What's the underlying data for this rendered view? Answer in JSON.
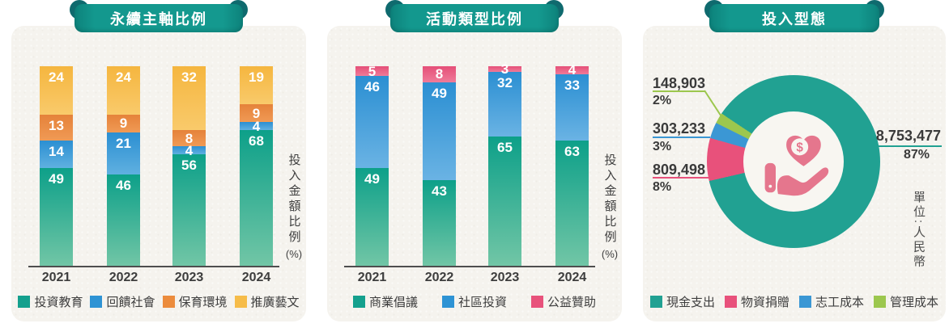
{
  "page": {
    "background": "#ffffff",
    "card_background": "#f5f3ee",
    "ribbon_color": "#13988e"
  },
  "chart_data": [
    {
      "type": "bar",
      "stacked": true,
      "title": "永續主軸比例",
      "categories": [
        "2021",
        "2022",
        "2023",
        "2024"
      ],
      "series": [
        {
          "name": "投資教育",
          "values": [
            49,
            46,
            56,
            68
          ],
          "color_top": "#0da089",
          "color_bottom": "#72c6a6",
          "legend_color": "#14a08d"
        },
        {
          "name": "回饋社會",
          "values": [
            14,
            21,
            4,
            4
          ],
          "color_top": "#2b8fd2",
          "color_bottom": "#5fb0e0",
          "legend_color": "#2e93d4"
        },
        {
          "name": "保育環境",
          "values": [
            13,
            9,
            8,
            9
          ],
          "color_top": "#e5823a",
          "color_bottom": "#f09a55",
          "legend_color": "#ec8c3d"
        },
        {
          "name": "推廣藝文",
          "values": [
            24,
            24,
            32,
            19
          ],
          "color_top": "#f5b63f",
          "color_bottom": "#f9ca6b",
          "legend_color": "#f6bc49"
        }
      ],
      "ylabel": "投入金額比例",
      "ylabel_unit": "(%)",
      "ylim": [
        0,
        100
      ],
      "legend_position": "bottom",
      "value_unit": "percent"
    },
    {
      "type": "bar",
      "stacked": true,
      "title": "活動類型比例",
      "categories": [
        "2021",
        "2022",
        "2023",
        "2024"
      ],
      "series": [
        {
          "name": "商業倡議",
          "values": [
            49,
            43,
            65,
            63
          ],
          "color_top": "#0da089",
          "color_bottom": "#72c6a6",
          "legend_color": "#14a08d"
        },
        {
          "name": "社區投資",
          "values": [
            46,
            49,
            32,
            33
          ],
          "color_top": "#2b8fd2",
          "color_bottom": "#6ab3e4",
          "legend_color": "#2e93d4"
        },
        {
          "name": "公益贊助",
          "values": [
            5,
            8,
            3,
            4
          ],
          "color_top": "#e54f78",
          "color_bottom": "#ef7b99",
          "legend_color": "#e8527b"
        }
      ],
      "ylabel": "投入金額比例",
      "ylabel_unit": "(%)",
      "ylim": [
        0,
        100
      ],
      "legend_position": "bottom",
      "value_unit": "percent"
    },
    {
      "type": "pie",
      "donut": true,
      "title": "投入型態",
      "unit_note": "單位:人民幣",
      "start_angle_deg": 257,
      "clockwise_order": [
        "物資捐贈",
        "志工成本",
        "管理成本",
        "現金支出"
      ],
      "slices": [
        {
          "name": "現金支出",
          "value": 8753477,
          "value_label": "8,753,477",
          "pct": 87,
          "pct_label": "87%",
          "color": "#21a192"
        },
        {
          "name": "物資捐贈",
          "value": 809498,
          "value_label": "809,498",
          "pct": 8,
          "pct_label": "8%",
          "color": "#e8517b"
        },
        {
          "name": "志工成本",
          "value": 303233,
          "value_label": "303,233",
          "pct": 3,
          "pct_label": "3%",
          "color": "#3b97d4"
        },
        {
          "name": "管理成本",
          "value": 148903,
          "value_label": "148,903",
          "pct": 2,
          "pct_label": "2%",
          "color": "#9cc74e"
        }
      ],
      "legend_position": "bottom",
      "center_icon": "hand-holding-heart-with-dollar-coin"
    }
  ]
}
